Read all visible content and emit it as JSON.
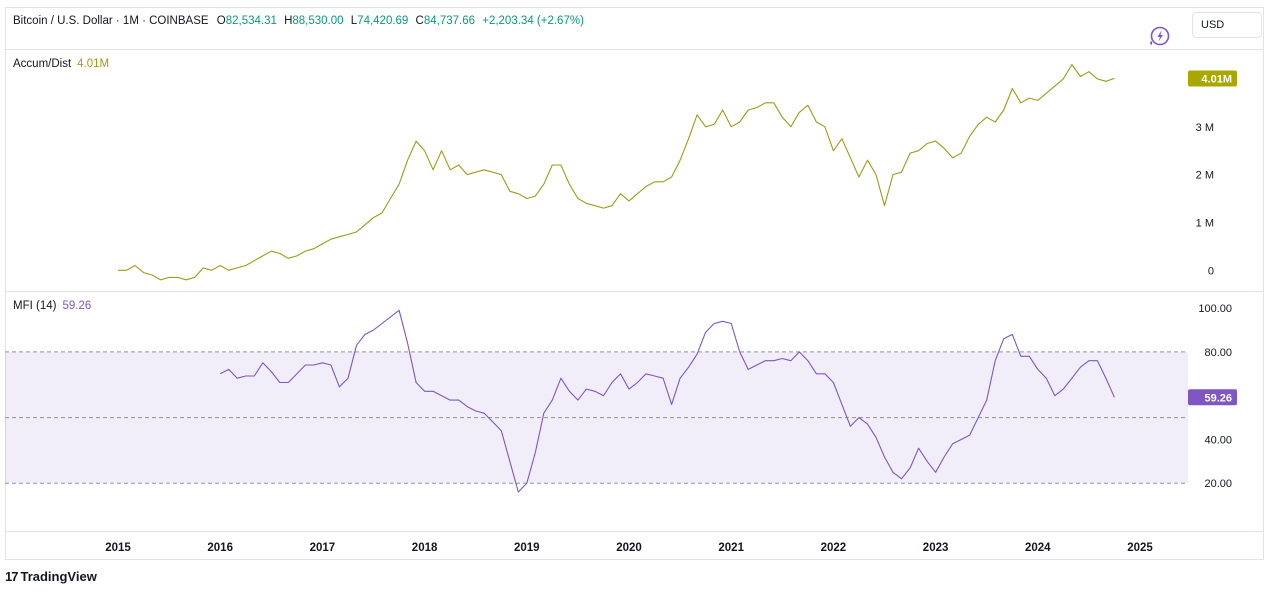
{
  "header": {
    "symbol": "Bitcoin / U.S. Dollar · 1M · COINBASE",
    "open_key": "O",
    "open": "82,534.31",
    "high_key": "H",
    "high": "88,530.00",
    "low_key": "L",
    "low": "74,420.69",
    "close_key": "C",
    "close": "84,737.66",
    "change": "+2,203.34 (+2.67%)",
    "currency": "USD"
  },
  "footer": {
    "brand": "TradingView"
  },
  "colors": {
    "ad_line": "#9c9c19",
    "ad_badge": "#a8a800",
    "mfi_line": "#7e57c2",
    "mfi_band": "#7e57c2",
    "up": "#089981"
  },
  "icons": {
    "replay": "lightning-circle-icon",
    "logo": "tradingview-logo-icon"
  },
  "chart_data": [
    {
      "type": "line",
      "legend_name": "Accum/Dist",
      "legend_value": "4.01M",
      "last_value_label": "4.01M",
      "x_tick_labels": [
        "2015",
        "2016",
        "2017",
        "2018",
        "2019",
        "2020",
        "2021",
        "2022",
        "2023",
        "2024",
        "2025"
      ],
      "y_tick_labels": [
        "0",
        "1 M",
        "2 M",
        "3 M"
      ],
      "ylim": [
        -0.35,
        4.5
      ],
      "start": "2015-01",
      "y": [
        0,
        0,
        0.1,
        -0.05,
        -0.1,
        -0.2,
        -0.15,
        -0.15,
        -0.2,
        -0.15,
        0.05,
        0,
        0.1,
        0,
        0.05,
        0.1,
        0.2,
        0.3,
        0.4,
        0.35,
        0.25,
        0.3,
        0.4,
        0.45,
        0.55,
        0.65,
        0.7,
        0.75,
        0.8,
        0.95,
        1.1,
        1.2,
        1.5,
        1.8,
        2.3,
        2.7,
        2.5,
        2.1,
        2.5,
        2.1,
        2.2,
        2.0,
        2.05,
        2.1,
        2.05,
        2.0,
        1.65,
        1.6,
        1.5,
        1.55,
        1.8,
        2.2,
        2.2,
        1.8,
        1.5,
        1.4,
        1.35,
        1.3,
        1.35,
        1.6,
        1.45,
        1.6,
        1.75,
        1.85,
        1.85,
        1.95,
        2.3,
        2.75,
        3.25,
        3.0,
        3.05,
        3.35,
        3.0,
        3.1,
        3.35,
        3.4,
        3.5,
        3.5,
        3.2,
        3.0,
        3.3,
        3.45,
        3.1,
        3.0,
        2.5,
        2.75,
        2.35,
        1.95,
        2.3,
        2.0,
        1.35,
        2.0,
        2.05,
        2.45,
        2.5,
        2.65,
        2.7,
        2.55,
        2.35,
        2.45,
        2.8,
        3.05,
        3.2,
        3.1,
        3.35,
        3.8,
        3.5,
        3.6,
        3.55,
        3.7,
        3.85,
        4.0,
        4.3,
        4.05,
        4.15,
        4.0,
        3.95,
        4.01
      ]
    },
    {
      "type": "line",
      "legend_name": "MFI (14)",
      "legend_value": "59.26",
      "last_value_label": "59.26",
      "x_tick_labels": [
        "2015",
        "2016",
        "2017",
        "2018",
        "2019",
        "2020",
        "2021",
        "2022",
        "2023",
        "2024",
        "2025"
      ],
      "y_tick_labels": [
        "20.00",
        "40.00",
        "80.00",
        "100.00"
      ],
      "ylim": [
        0,
        106
      ],
      "bands": {
        "upper": 80,
        "middle": 50,
        "lower": 20
      },
      "start": "2016-01",
      "y": [
        70,
        72,
        68,
        69,
        69,
        75,
        71,
        66,
        66,
        70,
        74,
        74,
        75,
        74,
        64,
        68,
        83,
        88,
        90,
        93,
        96,
        99,
        84,
        66,
        62,
        62,
        60,
        58,
        58,
        55,
        53,
        52,
        48,
        44,
        30,
        16,
        20,
        34,
        52,
        58,
        68,
        62,
        58,
        63,
        62,
        60,
        66,
        70,
        63,
        66,
        70,
        69,
        68,
        56,
        68,
        73,
        79,
        89,
        93,
        94,
        93,
        80,
        72,
        74,
        76,
        76,
        77,
        76,
        80,
        76,
        70,
        70,
        66,
        56,
        46,
        50,
        47,
        41,
        32,
        25,
        22,
        27,
        36,
        30,
        25,
        32,
        38,
        40,
        42,
        50,
        58,
        76,
        86,
        88,
        78,
        78,
        72,
        68,
        60,
        63,
        68,
        73,
        76,
        76,
        68,
        59.26
      ]
    }
  ]
}
